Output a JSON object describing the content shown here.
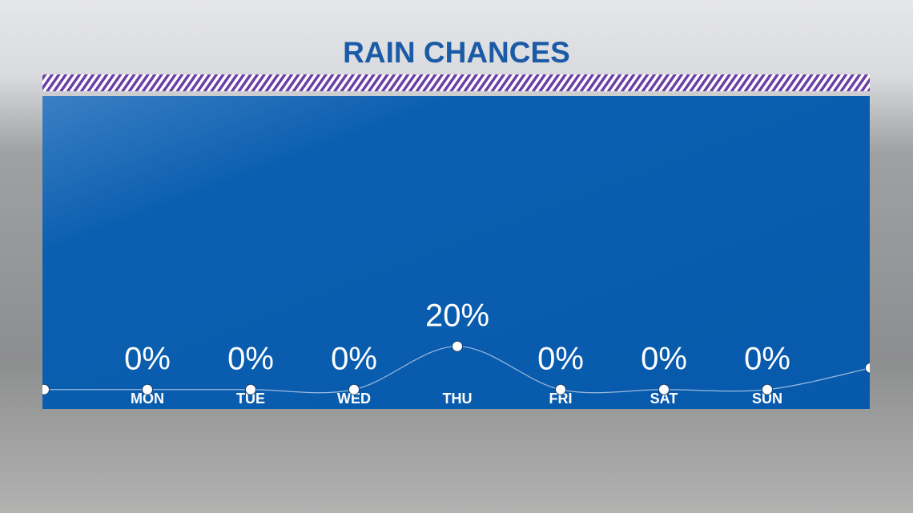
{
  "chart_data": {
    "type": "line",
    "title": "RAIN CHANCES",
    "categories": [
      null,
      "MON",
      "TUE",
      "WED",
      "THU",
      "FRI",
      "SAT",
      "SUN",
      null
    ],
    "values": [
      0,
      0,
      0,
      0,
      20,
      0,
      0,
      0,
      10
    ],
    "value_labels": [
      null,
      "0%",
      "0%",
      "0%",
      "20%",
      "0%",
      "0%",
      "0%",
      null
    ],
    "ylim": [
      -9,
      136
    ],
    "color": "#ffffff"
  }
}
